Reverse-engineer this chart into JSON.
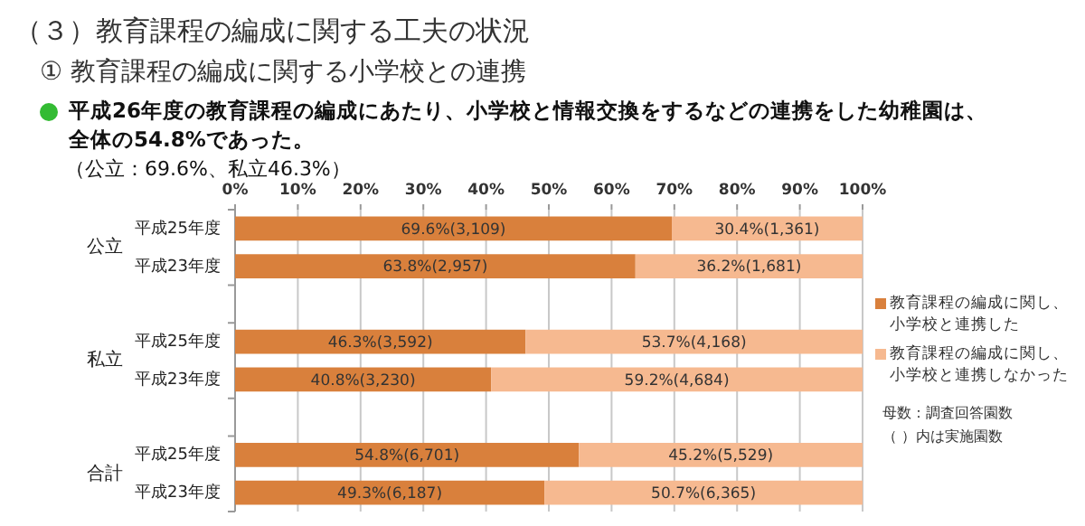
{
  "chart_data": {
    "type": "bar",
    "orientation": "horizontal",
    "stacked": true,
    "title": "（３）教育課程の編成に関する工夫の状況",
    "subtitle": "① 教育課程の編成に関する小学校との連携",
    "categories": [
      "平成25年度",
      "平成23年度",
      null,
      "平成25年度",
      "平成23年度",
      null,
      "平成25年度",
      "平成23年度"
    ],
    "series": [
      {
        "name": "教育課程の編成に関し、小学校と連携した",
        "color": "#d9803c",
        "values": [
          69.6,
          63.8,
          null,
          46.3,
          40.8,
          null,
          54.8,
          49.3
        ],
        "value_labels": [
          "69.6%(3,109)",
          "63.8%(2,957)",
          null,
          "46.3%(3,592)",
          "40.8%(3,230)",
          null,
          "54.8%(6,701)",
          "49.3%(6,187)"
        ]
      },
      {
        "name": "教育課程の編成に関し、小学校と連携しなかった",
        "color": "#f6b990",
        "values": [
          30.4,
          36.2,
          null,
          53.7,
          59.2,
          null,
          45.2,
          50.7
        ],
        "value_labels": [
          "30.4%(1,361)",
          "36.2%(1,681)",
          null,
          "53.7%(4,168)",
          "59.2%(4,684)",
          null,
          "45.2%(5,529)",
          "50.7%(6,365)"
        ]
      }
    ],
    "xlim": [
      0,
      100
    ],
    "xticks": [
      {
        "value": 0,
        "label": "0%"
      },
      {
        "value": 10,
        "label": "10%"
      },
      {
        "value": 20,
        "label": "20%"
      },
      {
        "value": 30,
        "label": "30%"
      },
      {
        "value": 40,
        "label": "40%"
      },
      {
        "value": 50,
        "label": "50%"
      },
      {
        "value": 60,
        "label": "60%"
      },
      {
        "value": 70,
        "label": "70%"
      },
      {
        "value": 80,
        "label": "80%"
      },
      {
        "value": 90,
        "label": "90%"
      },
      {
        "value": 100,
        "label": "100%"
      }
    ],
    "grid": "x",
    "legend": "right",
    "annotations": [
      "公立",
      "私立",
      "合計",
      "平成26年度の教育課程の編成にあたり、小学校と情報交換をするなどの連携をした幼稚園は、",
      "全体の54.8%であった。",
      "（公立：69.6%、私立46.3%）",
      "母数：調査回答園数",
      "（ ）内は実施園数"
    ]
  }
}
